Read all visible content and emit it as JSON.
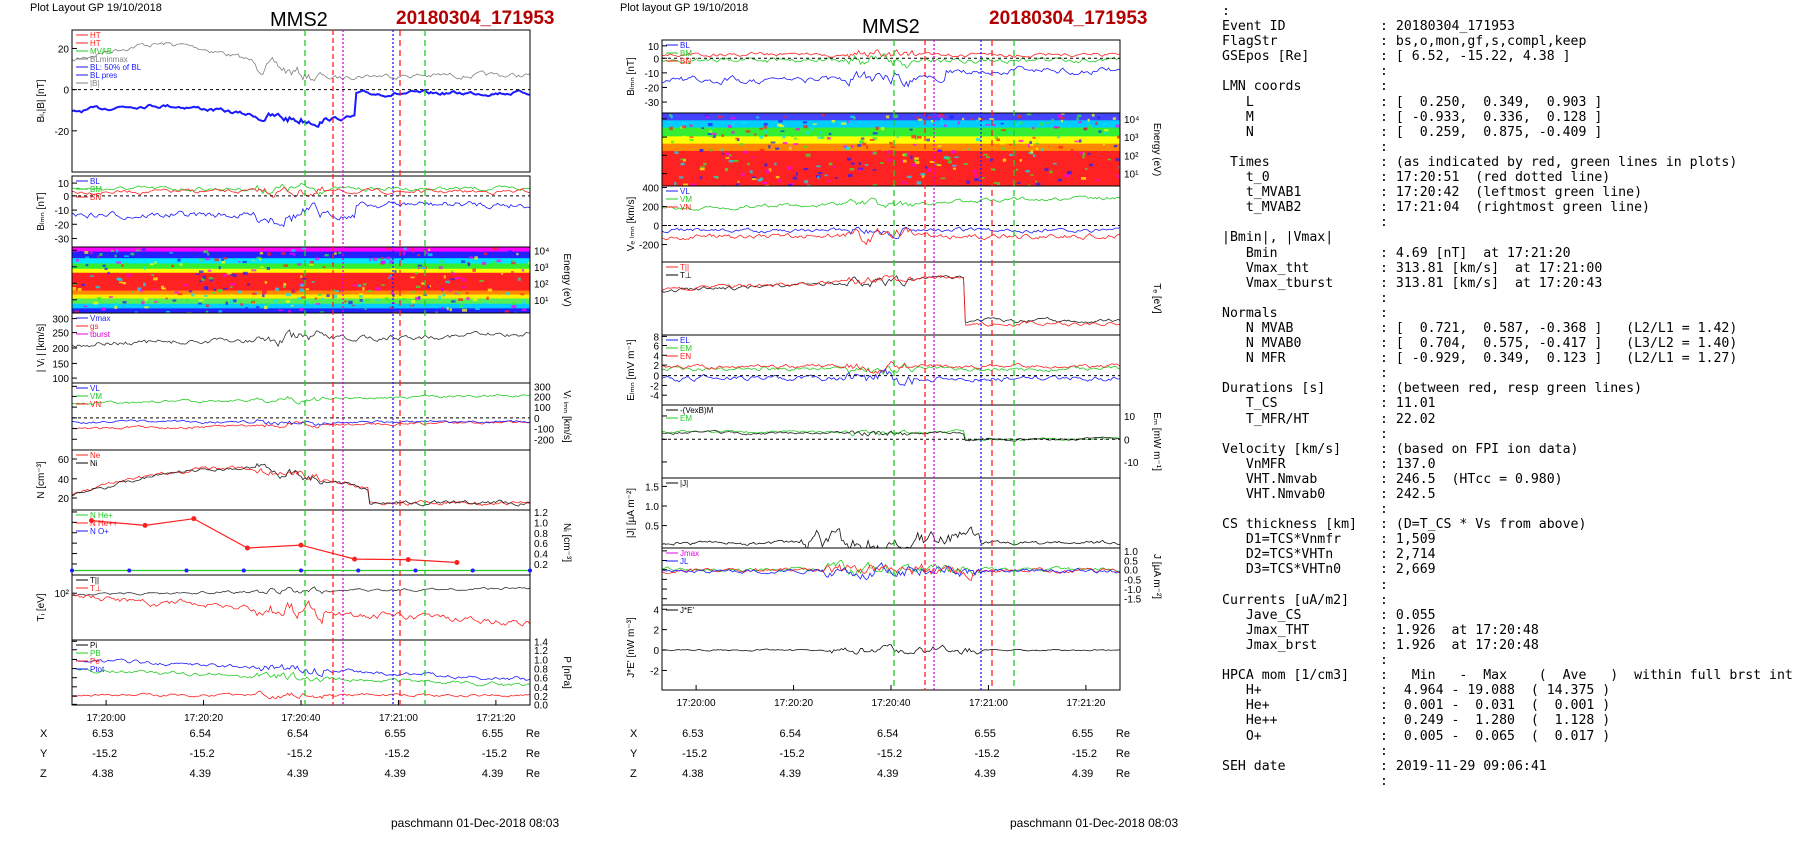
{
  "left_plot": {
    "header": "Plot Layout GP 19/10/2018",
    "title": "MMS2",
    "event": "20180304_171953",
    "footer": "paschmann 01-Dec-2018 08:03",
    "time_ticks": [
      "17:20:00",
      "17:20:20",
      "17:20:40",
      "17:21:00",
      "17:21:20"
    ],
    "coords": {
      "labels": [
        "X",
        "Y",
        "Z"
      ],
      "unit": "Re",
      "rows": [
        [
          "6.53",
          "6.54",
          "6.54",
          "6.55",
          "6.55"
        ],
        [
          "-15.2",
          "-15.2",
          "-15.2",
          "-15.2",
          "-15.2"
        ],
        [
          "4.38",
          "4.39",
          "4.39",
          "4.39",
          "4.39"
        ]
      ]
    }
  },
  "right_plot": {
    "header": "Plot layout GP 19/10/2018",
    "title": "MMS2",
    "event": "20180304_171953",
    "footer": "paschmann 01-Dec-2018 08:03",
    "time_ticks": [
      "17:20:00",
      "17:20:20",
      "17:20:40",
      "17:21:00",
      "17:21:20"
    ],
    "coords": {
      "labels": [
        "X",
        "Y",
        "Z"
      ],
      "unit": "Re",
      "rows": [
        [
          "6.53",
          "6.54",
          "6.54",
          "6.55",
          "6.55"
        ],
        [
          "-15.2",
          "-15.2",
          "-15.2",
          "-15.2",
          "-15.2"
        ],
        [
          "4.38",
          "4.39",
          "4.39",
          "4.39",
          "4.39"
        ]
      ]
    }
  },
  "colors": {
    "red": "#ff2020",
    "green": "#22cc22",
    "blue": "#1a1aff",
    "black": "#000000",
    "gray": "#808080",
    "magenta": "#e000e0",
    "event": "#b40000"
  },
  "chart_data": [
    {
      "type": "line",
      "title": "MMS2",
      "x_range": [
        "17:19:53",
        "17:21:27"
      ],
      "panels": [
        {
          "ylabel": "B_L,|B| [nT]",
          "yticks": [
            "20",
            "0",
            "-20"
          ],
          "series": [
            "HT",
            "HT",
            "MVAB",
            "BLminmax",
            "BL: 50% of BL",
            "BL pres",
            "|B|"
          ]
        },
        {
          "ylabel": "B_LMN [nT]",
          "yticks": [
            "10",
            "0",
            "-10",
            "-20",
            "-30"
          ],
          "series": [
            "BL",
            "BM",
            "BN"
          ]
        },
        {
          "type": "heatmap",
          "ylabel": "Energy (eV)",
          "yticks": [
            "10^4",
            "10^3",
            "10^2",
            "10^1"
          ]
        },
        {
          "ylabel": "|V_i| [km/s]",
          "yticks": [
            "300",
            "250",
            "200",
            "150",
            "100"
          ],
          "series": [
            "Vmax",
            "gs",
            "tburst"
          ]
        },
        {
          "ylabel": "V_i LMN [km/s]",
          "yticks": [
            "300",
            "200",
            "100",
            "0",
            "-100",
            "-200"
          ],
          "series": [
            "VL",
            "VM",
            "VN"
          ]
        },
        {
          "ylabel": "N [cm^-3]",
          "yticks": [
            "60",
            "40",
            "20"
          ],
          "series": [
            "Ne",
            "Ni"
          ]
        },
        {
          "ylabel": "N_i [cm^-3]",
          "yticks": [
            "1.2",
            "1.0",
            "0.8",
            "0.6",
            "0.4",
            "0.2"
          ],
          "series": [
            "N He+",
            "N He++",
            "N O+"
          ],
          "he_pp_points": [
            {
              "t": "17:19:57",
              "v": 1.13
            },
            {
              "t": "17:20:08",
              "v": 1.03
            },
            {
              "t": "17:20:18",
              "v": 1.17
            },
            {
              "t": "17:20:29",
              "v": 0.56
            },
            {
              "t": "17:20:40",
              "v": 0.62
            },
            {
              "t": "17:20:51",
              "v": 0.33
            },
            {
              "t": "17:21:02",
              "v": 0.32
            },
            {
              "t": "17:21:12",
              "v": 0.26
            }
          ]
        },
        {
          "ylabel": "T_i [eV]",
          "yticks": [
            "10^2"
          ],
          "series": [
            "T||",
            "T_perp"
          ]
        },
        {
          "ylabel": "P [nPa]",
          "yticks": [
            "1.4",
            "1.2",
            "1.0",
            "0.8",
            "0.6",
            "0.4",
            "0.2",
            "0.0"
          ],
          "series": [
            "Pi",
            "PB",
            "Pe",
            "Ptot"
          ]
        }
      ]
    },
    {
      "type": "line",
      "title": "MMS2",
      "x_range": [
        "17:19:53",
        "17:21:27"
      ],
      "panels": [
        {
          "ylabel": "B_LMN [nT]",
          "yticks": [
            "10",
            "0",
            "-10",
            "-20",
            "-30"
          ],
          "series": [
            "BL",
            "BM",
            "BN"
          ]
        },
        {
          "type": "heatmap",
          "ylabel": "Energy (eV)",
          "yticks": [
            "10^4",
            "10^3",
            "10^2",
            "10^1"
          ]
        },
        {
          "ylabel": "V_e LMN [km/s]",
          "yticks": [
            "400",
            "200",
            "0",
            "-200"
          ],
          "series": [
            "VL",
            "VM",
            "VN"
          ]
        },
        {
          "ylabel": "T_e [eV]",
          "series": [
            "T||",
            "T_perp"
          ]
        },
        {
          "ylabel": "E_LMN [mV m^-1]",
          "yticks": [
            "8",
            "6",
            "4",
            "2",
            "0",
            "-2",
            "-4"
          ],
          "series": [
            "EL",
            "EM",
            "EN"
          ]
        },
        {
          "ylabel": "E_M [mV m^-1]",
          "yticks": [
            "10",
            "0",
            "-10"
          ],
          "series": [
            "-(VexB)M",
            "EM"
          ]
        },
        {
          "ylabel": "|J| [µA m^-2]",
          "yticks": [
            "1.5",
            "1.0",
            "0.5"
          ],
          "series": [
            "|J|"
          ]
        },
        {
          "ylabel": "J [µA m^-2]",
          "yticks": [
            "1.0",
            "0.5",
            "0.0",
            "-0.5",
            "-1.0",
            "-1.5"
          ],
          "series": [
            "Jmax",
            "JL",
            "JM",
            "JN"
          ]
        },
        {
          "ylabel": "J*E' [nW m^-3]",
          "yticks": [
            "4",
            "2",
            "0",
            "-2"
          ],
          "series": [
            "J*E'"
          ]
        }
      ]
    }
  ],
  "info": {
    "top_colon": ":",
    "rows": [
      {
        "k": "Event ID",
        "v": ": 20180304_171953"
      },
      {
        "k": "FlagStr",
        "v": ": bs,o,mon,gf,s,compl,keep"
      },
      {
        "k": "GSEpos [Re]",
        "v": ": [ 6.52, -15.22, 4.38 ]"
      },
      {
        "k": "",
        "v": ":"
      },
      {
        "k": "LMN coords",
        "v": ":"
      },
      {
        "k": "   L",
        "v": ": [  0.250,  0.349,  0.903 ]"
      },
      {
        "k": "   M",
        "v": ": [ -0.933,  0.336,  0.128 ]"
      },
      {
        "k": "   N",
        "v": ": [  0.259,  0.875, -0.409 ]"
      },
      {
        "k": "",
        "v": ":"
      },
      {
        "k": " Times",
        "v": ": (as indicated by red, green lines in plots)"
      },
      {
        "k": "   t_0",
        "v": ": 17:20:51  (red dotted line)"
      },
      {
        "k": "   t_MVAB1",
        "v": ": 17:20:42  (leftmost green line)"
      },
      {
        "k": "   t_MVAB2",
        "v": ": 17:21:04  (rightmost green line)"
      },
      {
        "k": "",
        "v": ":"
      },
      {
        "k": "|Bmin|, |Vmax|",
        "v": ""
      },
      {
        "k": "   Bmin",
        "v": ": 4.69 [nT]  at 17:21:20"
      },
      {
        "k": "   Vmax_tht",
        "v": ": 313.81 [km/s]  at 17:21:00"
      },
      {
        "k": "   Vmax_tburst",
        "v": ": 313.81 [km/s]  at 17:20:43"
      },
      {
        "k": "",
        "v": ":"
      },
      {
        "k": "Normals",
        "v": ":"
      },
      {
        "k": "   N MVAB",
        "v": ": [  0.721,  0.587, -0.368 ]   (L2/L1 = 1.42)"
      },
      {
        "k": "   N MVAB0",
        "v": ": [  0.704,  0.575, -0.417 ]   (L3/L2 = 1.40)"
      },
      {
        "k": "   N MFR",
        "v": ": [ -0.929,  0.349,  0.123 ]   (L2/L1 = 1.27)"
      },
      {
        "k": "",
        "v": ":"
      },
      {
        "k": "Durations [s]",
        "v": ": (between red, resp green lines)"
      },
      {
        "k": "   T_CS",
        "v": ": 11.01"
      },
      {
        "k": "   T_MFR/HT",
        "v": ": 22.02"
      },
      {
        "k": "",
        "v": ":"
      },
      {
        "k": "Velocity [km/s]",
        "v": ": (based on FPI ion data)"
      },
      {
        "k": "   VnMFR",
        "v": ": 137.0"
      },
      {
        "k": "   VHT.Nmvab",
        "v": ": 246.5  (HTcc = 0.980)"
      },
      {
        "k": "   VHT.Nmvab0",
        "v": ": 242.5"
      },
      {
        "k": "",
        "v": ":"
      },
      {
        "k": "CS thickness [km]",
        "v": ": (D=T_CS * Vs from above)"
      },
      {
        "k": "   D1=TCS*Vnmfr",
        "v": ": 1,509"
      },
      {
        "k": "   D2=TCS*VHTn",
        "v": ": 2,714"
      },
      {
        "k": "   D3=TCS*VHTn0",
        "v": ": 2,669"
      },
      {
        "k": "",
        "v": ":"
      },
      {
        "k": "Currents [uA/m2]",
        "v": ":"
      },
      {
        "k": "   Jave_CS",
        "v": ": 0.055"
      },
      {
        "k": "   Jmax_THT",
        "v": ": 1.926  at 17:20:48"
      },
      {
        "k": "   Jmax_brst",
        "v": ": 1.926  at 17:20:48"
      },
      {
        "k": "",
        "v": ":"
      },
      {
        "k": "HPCA mom [1/cm3]",
        "v": ":   Min   -  Max    (  Ave   )  within full brst int"
      },
      {
        "k": "   H+",
        "v": ":  4.964 - 19.088  ( 14.375 )"
      },
      {
        "k": "   He+",
        "v": ":  0.001 -  0.031  (  0.001 )"
      },
      {
        "k": "   He++",
        "v": ":  0.249 -  1.280  (  1.128 )"
      },
      {
        "k": "   O+",
        "v": ":  0.005 -  0.065  (  0.017 )"
      },
      {
        "k": "",
        "v": ":"
      },
      {
        "k": "SEH date",
        "v": ": 2019-11-29 09:06:41"
      },
      {
        "k": "",
        "v": ":"
      }
    ]
  }
}
